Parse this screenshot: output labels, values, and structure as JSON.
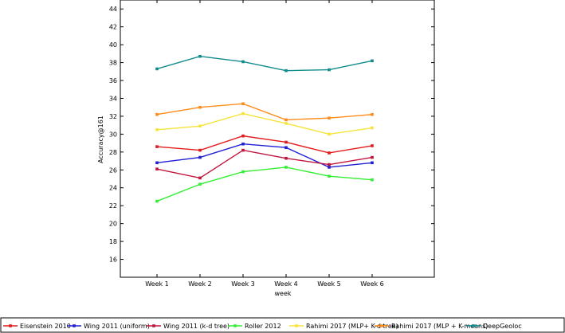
{
  "chart_data": {
    "type": "line",
    "xlabel": "week",
    "ylabel": "Accuracy@161",
    "categories": [
      "Week 1",
      "Week 2",
      "Week 3",
      "Week 4",
      "Week 5",
      "Week 6"
    ],
    "ylim": [
      14,
      45
    ],
    "yticks": [
      16,
      18,
      20,
      22,
      24,
      26,
      28,
      30,
      32,
      34,
      36,
      38,
      40,
      42,
      44
    ],
    "grid": false,
    "legend_position": "bottom",
    "series": [
      {
        "name": "Eisenstein 2010",
        "color": "#e41a1c",
        "values": [
          28.6,
          28.2,
          29.8,
          29.1,
          27.9,
          28.7
        ]
      },
      {
        "name": "Wing 2011 (uniform)",
        "color": "#1f1fd6",
        "values": [
          26.8,
          27.4,
          28.9,
          28.5,
          26.3,
          26.8
        ]
      },
      {
        "name": "Wing 2011 (k-d tree)",
        "color": "#c0143c",
        "values": [
          26.1,
          25.1,
          28.2,
          27.3,
          26.6,
          27.4
        ]
      },
      {
        "name": "Roller 2012",
        "color": "#33ee33",
        "values": [
          22.5,
          24.4,
          25.8,
          26.3,
          25.3,
          24.9
        ]
      },
      {
        "name": "Rahimi 2017 (MLP+ K-d tree)",
        "color": "#f5e43a",
        "values": [
          30.5,
          30.9,
          32.3,
          31.2,
          30.0,
          30.7
        ]
      },
      {
        "name": "Rahimi 2017 (MLP + K-means)",
        "color": "#ff8c1a",
        "values": [
          32.2,
          33.0,
          33.4,
          31.6,
          31.8,
          32.2
        ]
      },
      {
        "name": "DeepGeoloc",
        "color": "#108c8c",
        "values": [
          37.3,
          38.7,
          38.1,
          37.1,
          37.2,
          38.2
        ]
      }
    ]
  }
}
